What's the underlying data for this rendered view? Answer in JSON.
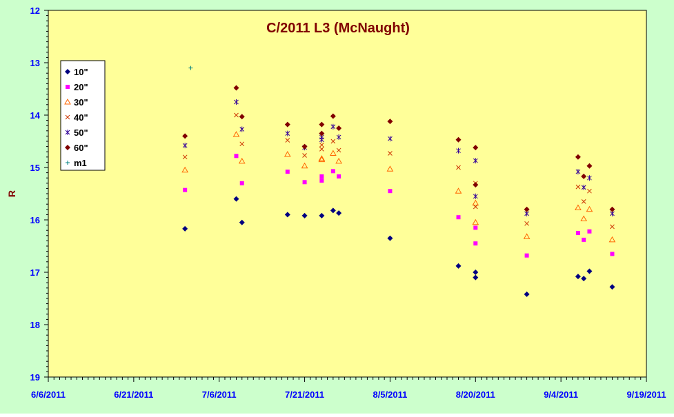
{
  "chart_data": {
    "type": "scatter",
    "title": "C/2011 L3 (McNaught)",
    "ylabel": "R",
    "xlabel": "",
    "y_reversed": true,
    "ylim": [
      12,
      19
    ],
    "y_ticks": [
      12,
      13,
      14,
      15,
      16,
      17,
      18,
      19
    ],
    "x_range": [
      "2011-06-06",
      "2011-09-19"
    ],
    "x_tick_labels": [
      "6/6/2011",
      "6/21/2011",
      "7/6/2011",
      "7/21/2011",
      "8/5/2011",
      "8/20/2011",
      "9/4/2011",
      "9/19/2011"
    ],
    "legend_position": "upper-left",
    "colors": {
      "outer_background": "#ccffcc",
      "plot_background": "#ffff99",
      "title": "#800000",
      "ylabel": "#800000",
      "tick_labels": "#0000ff"
    },
    "series": [
      {
        "name": "10\"",
        "marker": "diamond",
        "color": "#000080",
        "points": [
          [
            "2011-06-30",
            16.17
          ],
          [
            "2011-07-09",
            15.6
          ],
          [
            "2011-07-10",
            16.05
          ],
          [
            "2011-07-18",
            15.9
          ],
          [
            "2011-07-21",
            15.92
          ],
          [
            "2011-07-24",
            15.92
          ],
          [
            "2011-07-26",
            15.82
          ],
          [
            "2011-07-27",
            15.87
          ],
          [
            "2011-08-05",
            16.35
          ],
          [
            "2011-08-17",
            16.88
          ],
          [
            "2011-08-20",
            17.0
          ],
          [
            "2011-08-20",
            17.1
          ],
          [
            "2011-08-29",
            17.42
          ],
          [
            "2011-09-07",
            17.08
          ],
          [
            "2011-09-08",
            17.12
          ],
          [
            "2011-09-09",
            16.98
          ],
          [
            "2011-09-13",
            17.28
          ]
        ]
      },
      {
        "name": "20\"",
        "marker": "square",
        "color": "#ff00ff",
        "points": [
          [
            "2011-06-30",
            15.43
          ],
          [
            "2011-07-09",
            14.78
          ],
          [
            "2011-07-10",
            15.3
          ],
          [
            "2011-07-18",
            15.08
          ],
          [
            "2011-07-21",
            15.28
          ],
          [
            "2011-07-24",
            15.17
          ],
          [
            "2011-07-24",
            15.25
          ],
          [
            "2011-07-26",
            15.07
          ],
          [
            "2011-07-27",
            15.17
          ],
          [
            "2011-08-05",
            15.45
          ],
          [
            "2011-08-17",
            15.95
          ],
          [
            "2011-08-20",
            16.15
          ],
          [
            "2011-08-20",
            16.45
          ],
          [
            "2011-08-29",
            16.68
          ],
          [
            "2011-09-07",
            16.25
          ],
          [
            "2011-09-08",
            16.38
          ],
          [
            "2011-09-09",
            16.22
          ],
          [
            "2011-09-13",
            16.65
          ]
        ]
      },
      {
        "name": "30\"",
        "marker": "triangle",
        "color": "#ff6600",
        "points": [
          [
            "2011-06-30",
            15.05
          ],
          [
            "2011-07-09",
            14.37
          ],
          [
            "2011-07-10",
            14.88
          ],
          [
            "2011-07-18",
            14.75
          ],
          [
            "2011-07-21",
            14.97
          ],
          [
            "2011-07-24",
            14.85
          ],
          [
            "2011-07-24",
            14.83
          ],
          [
            "2011-07-26",
            14.73
          ],
          [
            "2011-07-27",
            14.88
          ],
          [
            "2011-08-05",
            15.03
          ],
          [
            "2011-08-17",
            15.45
          ],
          [
            "2011-08-20",
            15.68
          ],
          [
            "2011-08-20",
            16.05
          ],
          [
            "2011-08-29",
            16.32
          ],
          [
            "2011-09-07",
            15.77
          ],
          [
            "2011-09-08",
            15.98
          ],
          [
            "2011-09-09",
            15.8
          ],
          [
            "2011-09-13",
            16.38
          ]
        ]
      },
      {
        "name": "40\"",
        "marker": "x",
        "color": "#cc3300",
        "points": [
          [
            "2011-06-30",
            14.8
          ],
          [
            "2011-07-09",
            14.0
          ],
          [
            "2011-07-10",
            14.55
          ],
          [
            "2011-07-18",
            14.48
          ],
          [
            "2011-07-21",
            14.77
          ],
          [
            "2011-07-24",
            14.65
          ],
          [
            "2011-07-24",
            14.57
          ],
          [
            "2011-07-26",
            14.5
          ],
          [
            "2011-07-27",
            14.67
          ],
          [
            "2011-08-05",
            14.73
          ],
          [
            "2011-08-17",
            15.0
          ],
          [
            "2011-08-20",
            15.3
          ],
          [
            "2011-08-20",
            15.75
          ],
          [
            "2011-08-29",
            16.07
          ],
          [
            "2011-09-07",
            15.37
          ],
          [
            "2011-09-08",
            15.65
          ],
          [
            "2011-09-09",
            15.45
          ],
          [
            "2011-09-13",
            16.13
          ]
        ]
      },
      {
        "name": "50\"",
        "marker": "star",
        "color": "#330099",
        "points": [
          [
            "2011-06-30",
            14.58
          ],
          [
            "2011-07-09",
            13.75
          ],
          [
            "2011-07-10",
            14.27
          ],
          [
            "2011-07-18",
            14.35
          ],
          [
            "2011-07-21",
            14.62
          ],
          [
            "2011-07-24",
            14.47
          ],
          [
            "2011-07-24",
            14.42
          ],
          [
            "2011-07-26",
            14.22
          ],
          [
            "2011-07-27",
            14.42
          ],
          [
            "2011-08-05",
            14.45
          ],
          [
            "2011-08-17",
            14.68
          ],
          [
            "2011-08-20",
            14.87
          ],
          [
            "2011-08-20",
            15.55
          ],
          [
            "2011-08-29",
            15.88
          ],
          [
            "2011-09-07",
            15.08
          ],
          [
            "2011-09-08",
            15.38
          ],
          [
            "2011-09-09",
            15.2
          ],
          [
            "2011-09-13",
            15.88
          ]
        ]
      },
      {
        "name": "60\"",
        "marker": "diamond",
        "color": "#800000",
        "points": [
          [
            "2011-06-30",
            14.4
          ],
          [
            "2011-07-09",
            13.48
          ],
          [
            "2011-07-10",
            14.03
          ],
          [
            "2011-07-18",
            14.18
          ],
          [
            "2011-07-21",
            14.6
          ],
          [
            "2011-07-24",
            14.35
          ],
          [
            "2011-07-24",
            14.18
          ],
          [
            "2011-07-26",
            14.02
          ],
          [
            "2011-07-27",
            14.25
          ],
          [
            "2011-08-05",
            14.12
          ],
          [
            "2011-08-17",
            14.47
          ],
          [
            "2011-08-20",
            14.62
          ],
          [
            "2011-08-20",
            15.33
          ],
          [
            "2011-08-29",
            15.8
          ],
          [
            "2011-09-07",
            14.8
          ],
          [
            "2011-09-08",
            15.17
          ],
          [
            "2011-09-09",
            14.97
          ],
          [
            "2011-09-13",
            15.8
          ]
        ]
      },
      {
        "name": "m1",
        "marker": "plus",
        "color": "#008080",
        "points": [
          [
            "2011-07-01",
            13.1
          ]
        ]
      }
    ]
  }
}
